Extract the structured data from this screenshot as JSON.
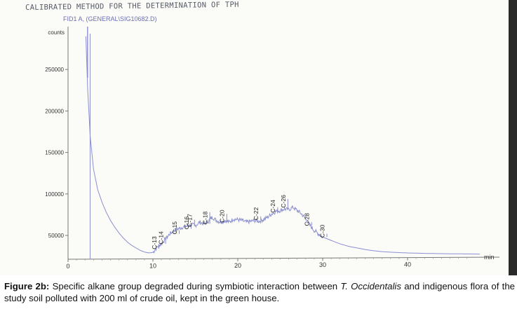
{
  "report_title": "CALIBRATED METHOD FOR THE DETERMINATION OF TPH",
  "signal_label": "FID1 A, (GENERAL\\SIG10682.D)",
  "chart_data": {
    "type": "line",
    "title": "CALIBRATED METHOD FOR THE DETERMINATION OF TPH",
    "xlabel": "min",
    "ylabel": "counts",
    "xlim": [
      0,
      50
    ],
    "ylim": [
      25000,
      290000
    ],
    "x_ticks": [
      0,
      10,
      20,
      30,
      40
    ],
    "y_ticks": [
      50000,
      100000,
      150000,
      200000,
      250000
    ],
    "y_tick_labels": [
      "50000",
      "100000",
      "150000",
      "200000",
      "250000"
    ],
    "x_tick_labels": [
      "0",
      "10",
      "20",
      "30",
      "40"
    ],
    "grid": false,
    "line_color": "#8b8fd0",
    "series": [
      {
        "values_description_free": true,
        "x": [
          2.1,
          2.3,
          2.6,
          3,
          3.5,
          4,
          4.5,
          5,
          5.5,
          6,
          6.5,
          7,
          7.5,
          8,
          8.5,
          9,
          9.5,
          10,
          10.5,
          11,
          11.5,
          12,
          12.5,
          13,
          13.5,
          14,
          14.5,
          15,
          15.5,
          16,
          16.5,
          17,
          17.5,
          18,
          18.5,
          19,
          19.5,
          20,
          20.5,
          21,
          21.5,
          22,
          22.5,
          23,
          23.5,
          24,
          24.5,
          25,
          25.5,
          26,
          26.5,
          27,
          27.5,
          28,
          28.5,
          29,
          29.5,
          30,
          31,
          32,
          33,
          34,
          35,
          36,
          37,
          38,
          39,
          40,
          41,
          42,
          43,
          44,
          45,
          46,
          47,
          48,
          48.5
        ],
        "y": [
          290000,
          230000,
          170000,
          130000,
          105000,
          90000,
          78000,
          68000,
          60000,
          53000,
          47000,
          42000,
          38000,
          35000,
          32000,
          30000,
          29000,
          29500,
          36000,
          40000,
          46000,
          52000,
          56000,
          58000,
          60000,
          61000,
          63000,
          62000,
          66000,
          64000,
          67000,
          72000,
          68000,
          66000,
          68000,
          66000,
          70000,
          69000,
          68000,
          66000,
          67000,
          68000,
          67000,
          69000,
          72000,
          76000,
          79000,
          80000,
          82000,
          81000,
          84000,
          80000,
          76000,
          70000,
          62000,
          56000,
          52000,
          48000,
          44000,
          40000,
          37000,
          35000,
          33000,
          31500,
          30500,
          29800,
          29300,
          28900,
          28600,
          28400,
          28200,
          28000,
          27900,
          27800,
          27700,
          27600,
          27500
        ]
      }
    ],
    "spike_at_min": 2.3,
    "marker_at_min": 2.6,
    "peaks": [
      {
        "label": "C-13",
        "x": 10.4,
        "y": 30000
      },
      {
        "label": "C-14",
        "x": 11.2,
        "y": 36000
      },
      {
        "label": "C-15",
        "x": 12.8,
        "y": 48000
      },
      {
        "label": "C-16",
        "x": 14.2,
        "y": 54000
      },
      {
        "label": "C-17",
        "x": 14.6,
        "y": 57000
      },
      {
        "label": "C-18",
        "x": 16.4,
        "y": 60000
      },
      {
        "label": "C-20",
        "x": 18.4,
        "y": 62000
      },
      {
        "label": "C-22",
        "x": 22.4,
        "y": 65000
      },
      {
        "label": "C-24",
        "x": 24.4,
        "y": 74000
      },
      {
        "label": "C-26",
        "x": 25.6,
        "y": 80000
      },
      {
        "label": "C-28",
        "x": 28.4,
        "y": 58000
      },
      {
        "label": "C-30",
        "x": 30.2,
        "y": 44000
      }
    ]
  },
  "caption": {
    "label": "Figure 2b:",
    "text_part1": " Specific alkane group degraded during symbiotic interaction between ",
    "species": "T. Occidentalis",
    "text_part2": " and indigenous flora of the study soil polluted with 200 ml of crude oil, kept in the green house."
  }
}
